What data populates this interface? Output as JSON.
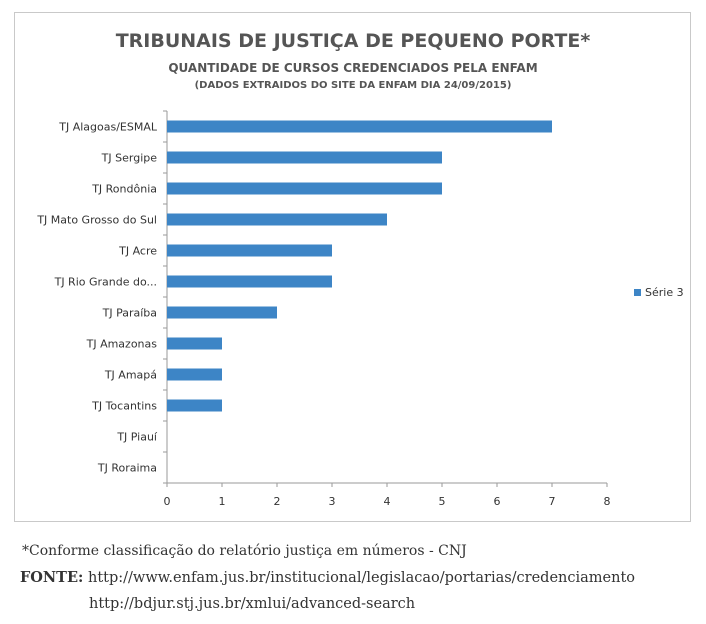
{
  "chart_data": {
    "type": "bar",
    "orientation": "horizontal",
    "title": "TRIBUNAIS DE JUSTIÇA DE PEQUENO PORTE*",
    "subtitle": "QUANTIDADE DE CURSOS CREDENCIADOS PELA ENFAM",
    "subtitle2": "(DADOS EXTRAIDOS DO SITE DA ENFAM DIA 24/09/2015)",
    "categories": [
      "TJ Alagoas/ESMAL",
      "TJ Sergipe",
      "TJ Rondônia",
      "TJ Mato Grosso do Sul",
      "TJ Acre",
      "TJ Rio Grande do...",
      "TJ Paraíba",
      "TJ Amazonas",
      "TJ Amapá",
      "TJ Tocantins",
      "TJ Piauí",
      "TJ Roraima"
    ],
    "series": [
      {
        "name": "Série 3",
        "values": [
          7,
          5,
          5,
          4,
          3,
          3,
          2,
          1,
          1,
          1,
          0,
          0
        ],
        "color": "#3d85c6"
      }
    ],
    "xlim": [
      0,
      8
    ],
    "xticks": [
      "0",
      "1",
      "2",
      "3",
      "4",
      "5",
      "6",
      "7",
      "8"
    ],
    "grid": false,
    "legend_position": "right"
  },
  "footnote": "*Conforme classificação do relatório justiça em números - CNJ",
  "source_label": "FONTE:",
  "source_url1": "http://www.enfam.jus.br/institucional/legislacao/portarias/credenciamento",
  "source_url2": "http://bdjur.stj.jus.br/xmlui/advanced-search"
}
